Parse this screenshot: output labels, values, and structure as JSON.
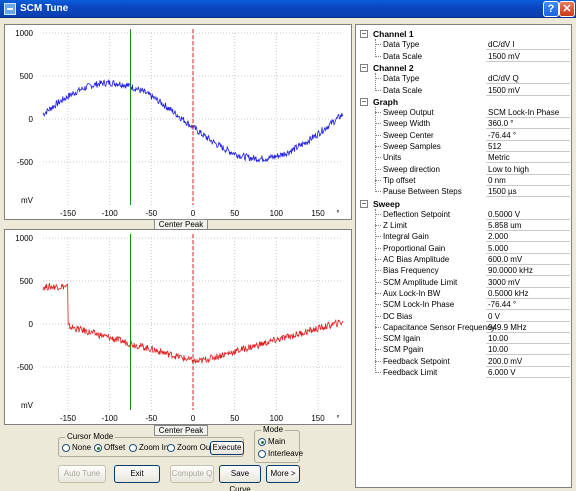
{
  "window": {
    "title": "SCM Tune",
    "help_label": "?",
    "close_label": "✕"
  },
  "plots": [
    {
      "name": "top",
      "color": "#1f1fe0",
      "y_ticks": [
        "1000",
        "500",
        "0",
        "-500",
        "mV"
      ],
      "x_ticks": [
        "-150",
        "-100",
        "-50",
        "0",
        "50",
        "100",
        "150",
        "°"
      ],
      "button_label": "Center Peak",
      "curve": "sine_offset",
      "chart_data": {
        "type": "line",
        "x_range": [
          -180,
          180
        ],
        "y_range": [
          -1000,
          1000
        ],
        "cursor_green_x": -75,
        "cursor_red_x": 0
      }
    },
    {
      "name": "bottom",
      "color": "#e01f1f",
      "y_ticks": [
        "1000",
        "500",
        "0",
        "-500",
        "mV"
      ],
      "x_ticks": [
        "-150",
        "-100",
        "-50",
        "0",
        "50",
        "100",
        "150",
        "°"
      ],
      "button_label": "Center Peak",
      "curve": "abs_v",
      "chart_data": {
        "type": "line",
        "x_range": [
          -180,
          180
        ],
        "y_range": [
          -1000,
          1000
        ],
        "cursor_green_x": -75,
        "cursor_red_x": 0
      }
    }
  ],
  "cursor_mode": {
    "legend": "Cursor Mode",
    "options": [
      "None",
      "Offset",
      "Zoom In",
      "Zoom Out"
    ],
    "selected": "Offset",
    "execute_label": "Execute"
  },
  "mode": {
    "legend": "Mode",
    "options": [
      "Main",
      "Interleave"
    ],
    "selected": "Main"
  },
  "buttons": {
    "auto_tune": "Auto Tune",
    "exit": "Exit",
    "compute_q": "Compute Q",
    "save_curve": "Save Curve",
    "more": "More >"
  },
  "properties": [
    {
      "group": "Channel 1",
      "items": [
        {
          "label": "Data Type",
          "value": "dC/dV I"
        },
        {
          "label": "Data Scale",
          "value": "1500 mV"
        }
      ]
    },
    {
      "group": "Channel 2",
      "items": [
        {
          "label": "Data Type",
          "value": "dC/dV Q"
        },
        {
          "label": "Data Scale",
          "value": "1500 mV"
        }
      ]
    },
    {
      "group": "Graph",
      "items": [
        {
          "label": "Sweep Output",
          "value": "SCM Lock-In Phase"
        },
        {
          "label": "Sweep Width",
          "value": "360.0 °"
        },
        {
          "label": "Sweep Center",
          "value": "-76.44 °"
        },
        {
          "label": "Sweep Samples",
          "value": "512"
        },
        {
          "label": "Units",
          "value": "Metric"
        },
        {
          "label": "Sweep direction",
          "value": "Low to high"
        },
        {
          "label": "Tip offset",
          "value": "0 nm"
        },
        {
          "label": "Pause Between Steps",
          "value": "1500 µs"
        }
      ]
    },
    {
      "group": "Sweep",
      "items": [
        {
          "label": "Deflection Setpoint",
          "value": "0.5000 V"
        },
        {
          "label": "Z Limit",
          "value": "5.858 um"
        },
        {
          "label": "Integral Gain",
          "value": "2.000"
        },
        {
          "label": "Proportional Gain",
          "value": "5.000"
        },
        {
          "label": "AC Bias Amplitude",
          "value": "600.0 mV"
        },
        {
          "label": "Bias Frequency",
          "value": "90.0000 kHz"
        },
        {
          "label": "SCM Amplitude Limit",
          "value": "3000 mV"
        },
        {
          "label": "Aux Lock-In BW",
          "value": "0.5000 kHz"
        },
        {
          "label": "SCM Lock-In Phase",
          "value": "-76.44 °"
        },
        {
          "label": "DC Bias",
          "value": "0 V"
        },
        {
          "label": "Capacitance Sensor Frequency",
          "value": "949.9 MHz"
        },
        {
          "label": "SCM Igain",
          "value": "10.00"
        },
        {
          "label": "SCM Pgain",
          "value": "10.00"
        },
        {
          "label": "Feedback Setpoint",
          "value": "200.0 mV"
        },
        {
          "label": "Feedback Limit",
          "value": "6.000 V"
        }
      ]
    }
  ]
}
